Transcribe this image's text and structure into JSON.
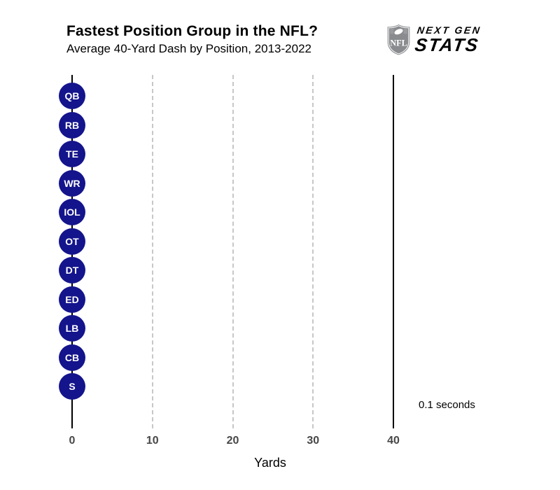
{
  "header": {
    "title": "Fastest Position Group in the NFL?",
    "subtitle": "Average 40-Yard Dash by Position, 2013-2022"
  },
  "logo": {
    "shield_text": "NFL",
    "line1": "NEXT GEN",
    "line2": "STATS",
    "green": "#8CC63E",
    "gray": "#6A6C6F",
    "shield_gray": "#898B8E"
  },
  "annotation": {
    "time_label": "0.1 seconds"
  },
  "chart_data": {
    "type": "scatter",
    "title": "Fastest Position Group in the NFL?",
    "subtitle": "Average 40-Yard Dash by Position, 2013-2022",
    "categories": [
      "QB",
      "RB",
      "TE",
      "WR",
      "IOL",
      "OT",
      "DT",
      "ED",
      "LB",
      "CB",
      "S"
    ],
    "values": [
      0,
      0,
      0,
      0,
      0,
      0,
      0,
      0,
      0,
      0,
      0
    ],
    "xlabel": "Yards",
    "x_ticks": [
      0,
      10,
      20,
      30,
      40
    ],
    "xlim": [
      0,
      49
    ],
    "finish_line_x": 40,
    "time_seconds": "0.1 seconds",
    "grid": "vertical-dashed-at-10-20-30",
    "legend": "none",
    "marker_color": "#14148C",
    "marker_text_color": "#ffffff",
    "gridline_color": "#C7C7C7",
    "axis_line_color": "#000000",
    "tick_label_color": "#474747"
  }
}
